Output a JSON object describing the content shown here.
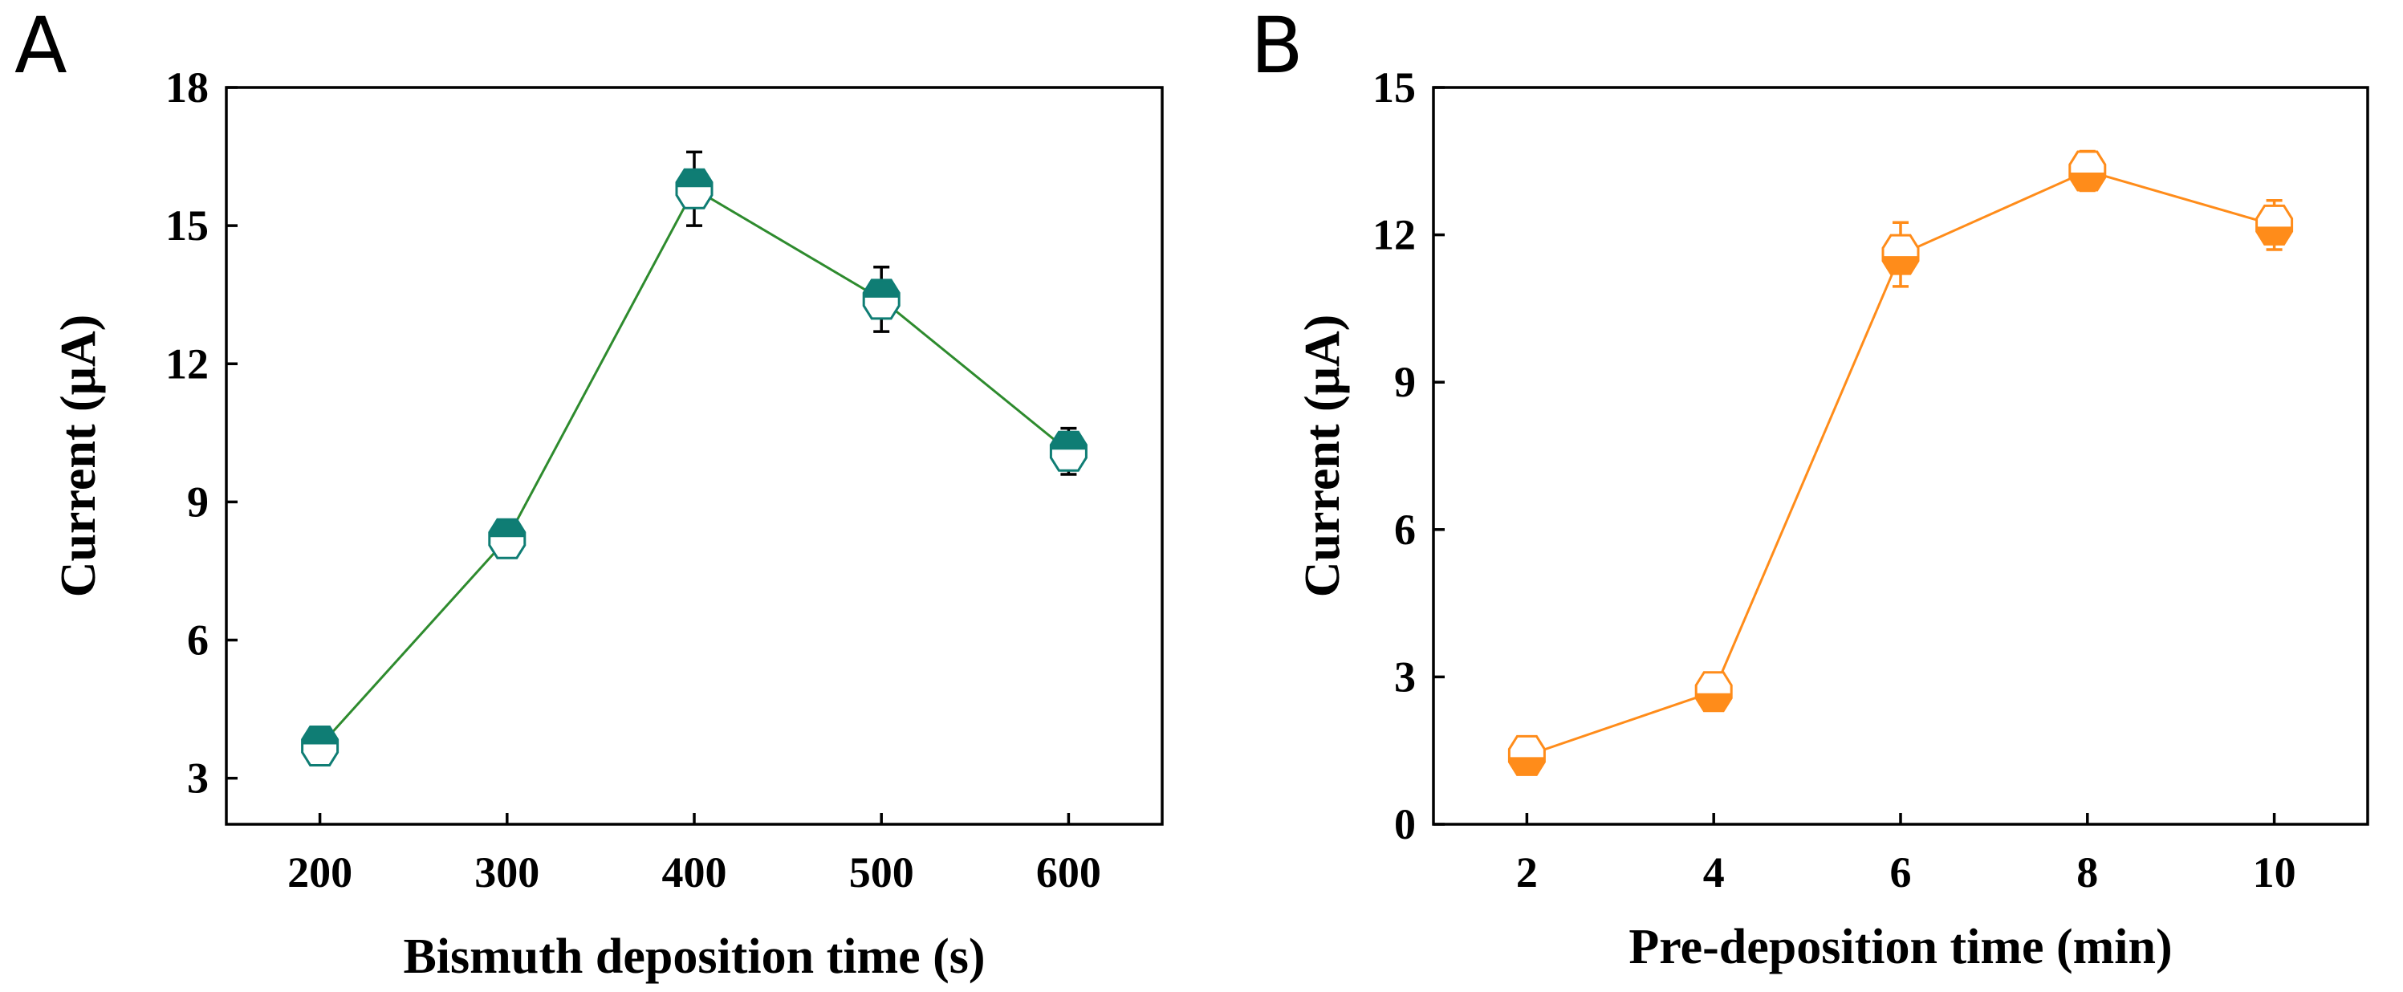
{
  "chart_data": [
    {
      "type": "line",
      "panel_label": "A",
      "xlabel": "Bismuth deposition time (s)",
      "ylabel": "Current (μA)",
      "categories": [
        200,
        300,
        400,
        500,
        600
      ],
      "x_ticks": [
        "200",
        "300",
        "400",
        "500",
        "600"
      ],
      "y_ticks": [
        "3",
        "6",
        "9",
        "12",
        "15",
        "18"
      ],
      "xlim": [
        150,
        650
      ],
      "ylim": [
        2,
        18
      ],
      "grid": false,
      "series": [
        {
          "name": "Current",
          "x": [
            200,
            300,
            400,
            500,
            600
          ],
          "values": [
            3.7,
            8.2,
            15.8,
            13.4,
            10.1
          ],
          "errors": [
            0.3,
            0.3,
            0.8,
            0.7,
            0.5
          ],
          "line_color": "#2e8b2e",
          "marker_color": "#0f7d74",
          "marker_fill": "top"
        }
      ]
    },
    {
      "type": "line",
      "panel_label": "B",
      "xlabel": "Pre-deposition time (min)",
      "ylabel": "Current (μA)",
      "categories": [
        2,
        4,
        6,
        8,
        10
      ],
      "x_ticks": [
        "2",
        "4",
        "6",
        "8",
        "10"
      ],
      "y_ticks": [
        "0",
        "3",
        "6",
        "9",
        "12",
        "15"
      ],
      "xlim": [
        1,
        11
      ],
      "ylim": [
        0,
        15
      ],
      "grid": false,
      "series": [
        {
          "name": "Current",
          "x": [
            2,
            4,
            6,
            8,
            10
          ],
          "values": [
            1.4,
            2.7,
            11.6,
            13.3,
            12.2
          ],
          "errors": [
            0.25,
            0.25,
            0.65,
            0.4,
            0.5
          ],
          "line_color": "#ff8c1a",
          "marker_color": "#ff8c1a",
          "marker_fill": "bottom"
        }
      ]
    }
  ]
}
